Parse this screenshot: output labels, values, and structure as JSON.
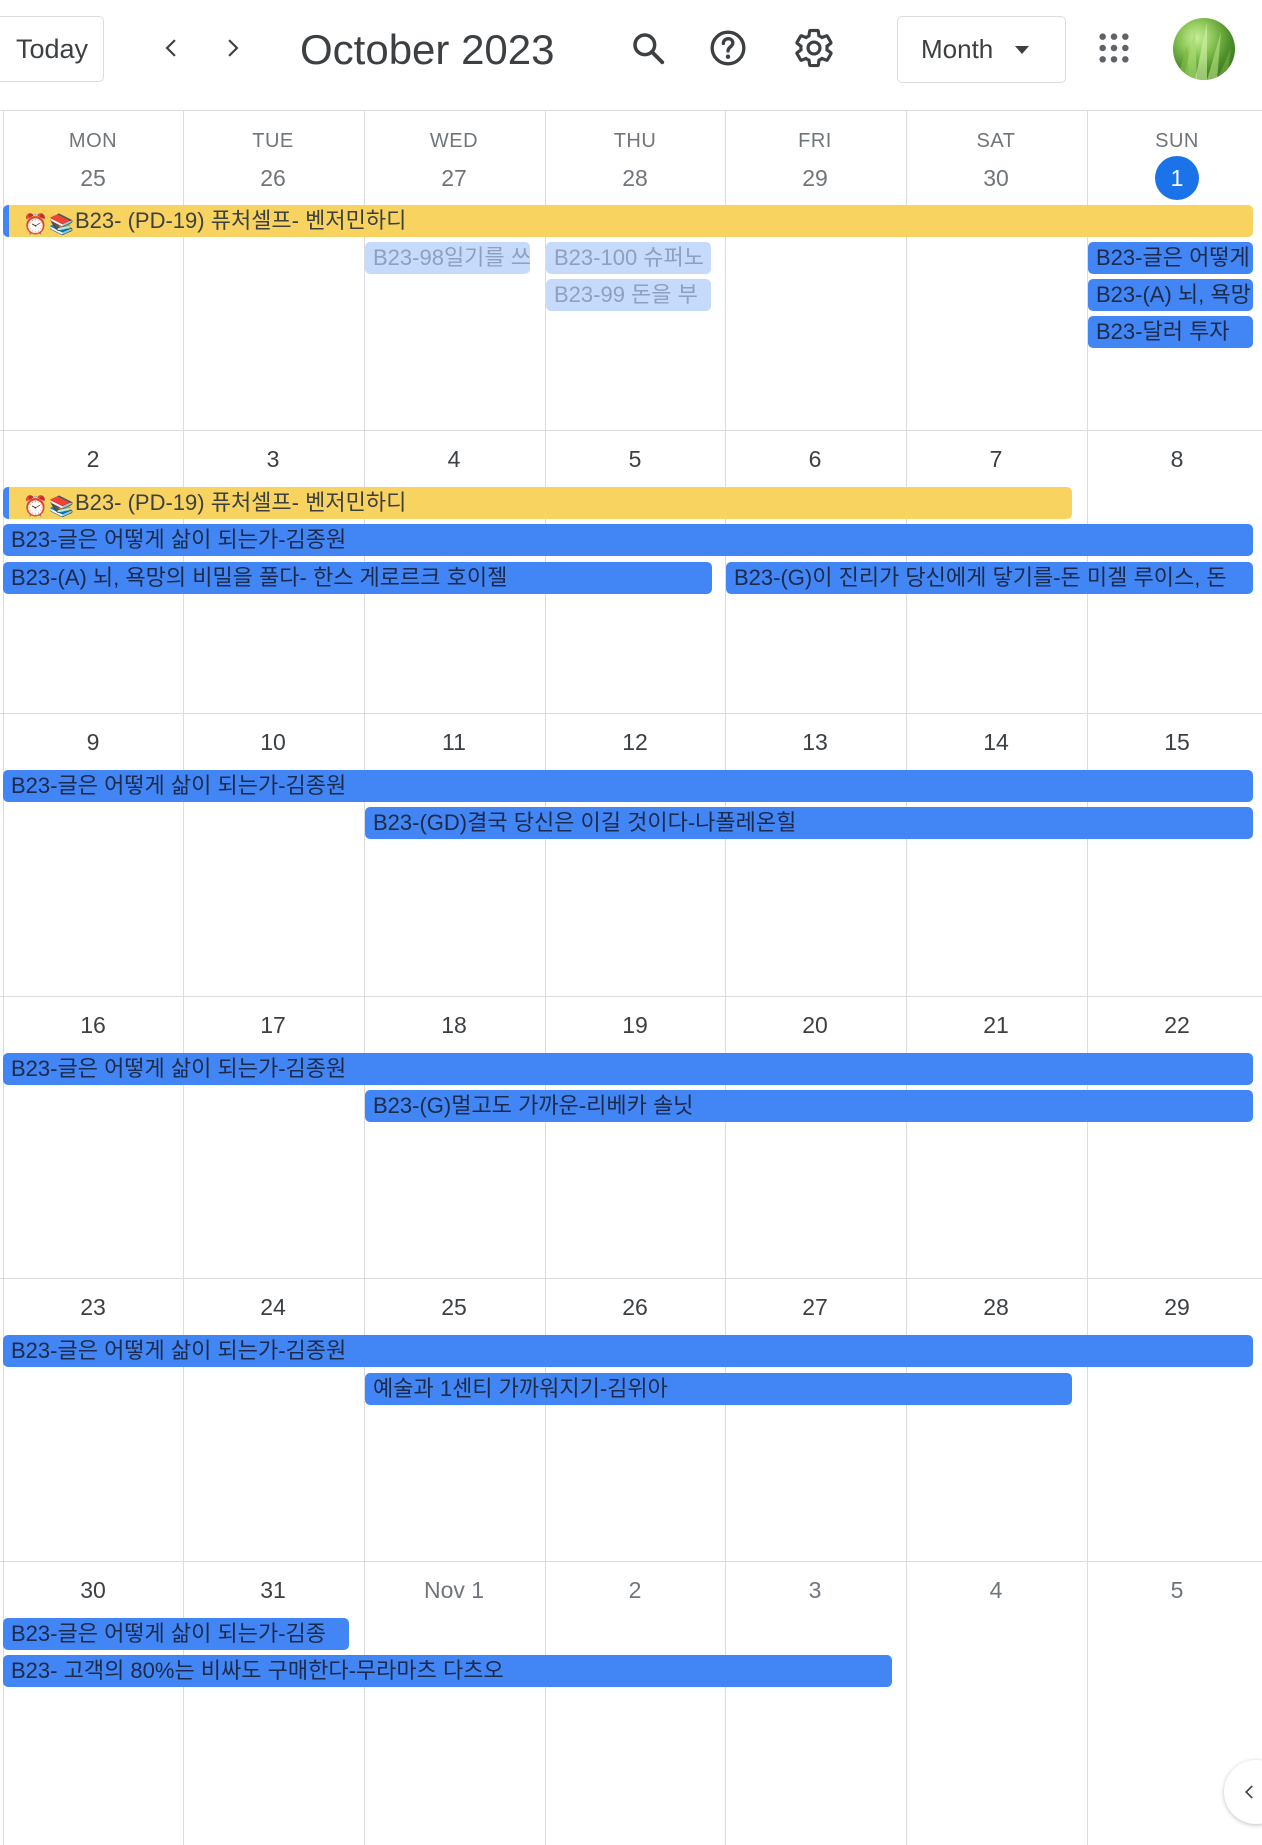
{
  "toolbar": {
    "today_label": "Today",
    "period_title": "October 2023",
    "view_label": "Month",
    "prev_icon": "chevron-left-icon",
    "next_icon": "chevron-right-icon",
    "search_icon": "search-icon",
    "help_icon": "help-icon",
    "settings_icon": "settings-icon",
    "apps_icon": "apps-grid-icon"
  },
  "colors": {
    "accent": "#1a73e8",
    "event_blue": "#4285f4",
    "event_yellow": "#f8d360",
    "event_pale": "#c6dafc",
    "grid_line": "#dadce0"
  },
  "weekdays": [
    "MON",
    "TUE",
    "WED",
    "THU",
    "FRI",
    "SAT",
    "SUN"
  ],
  "weeks": [
    [
      "25",
      "26",
      "27",
      "28",
      "29",
      "30",
      "1"
    ],
    [
      "2",
      "3",
      "4",
      "5",
      "6",
      "7",
      "8"
    ],
    [
      "9",
      "10",
      "11",
      "12",
      "13",
      "14",
      "15"
    ],
    [
      "16",
      "17",
      "18",
      "19",
      "20",
      "21",
      "22"
    ],
    [
      "23",
      "24",
      "25",
      "26",
      "27",
      "28",
      "29"
    ],
    [
      "30",
      "31",
      "Nov 1",
      "2",
      "3",
      "4",
      "5"
    ]
  ],
  "today_date": "1",
  "events": [
    {
      "title": "B23- (PD-19) 퓨처셀프- 벤저민하디",
      "emoji": [
        "⏰",
        "📚"
      ],
      "color": "yellow"
    },
    {
      "title": "B23-98일기를 쓰",
      "color": "pale"
    },
    {
      "title": "B23-100 슈퍼노",
      "color": "pale"
    },
    {
      "title": "B23-99 돈을 부",
      "color": "pale"
    },
    {
      "title": "B23-글은 어떻게",
      "color": "blue"
    },
    {
      "title": "B23-(A) 뇌, 욕망",
      "color": "blue"
    },
    {
      "title": "B23-달러 투자",
      "color": "blue"
    },
    {
      "title": "B23- (PD-19) 퓨처셀프- 벤저민하디",
      "emoji": [
        "⏰",
        "📚"
      ],
      "color": "yellow"
    },
    {
      "title": "B23-글은 어떻게 삶이 되는가-김종원",
      "color": "blue"
    },
    {
      "title": "B23-(A) 뇌, 욕망의 비밀을 풀다- 한스 게로르크 호이젤",
      "color": "blue"
    },
    {
      "title": "B23-(G)이 진리가 당신에게 닿기를-돈 미겔 루이스, 돈",
      "color": "blue"
    },
    {
      "title": "B23-글은 어떻게 삶이 되는가-김종원",
      "color": "blue"
    },
    {
      "title": "B23-(GD)결국 당신은 이길 것이다-나폴레온힐",
      "color": "blue"
    },
    {
      "title": "B23-글은 어떻게 삶이 되는가-김종원",
      "color": "blue"
    },
    {
      "title": "B23-(G)멀고도 가까운-리베카 솔닛",
      "color": "blue"
    },
    {
      "title": "B23-글은 어떻게 삶이 되는가-김종원",
      "color": "blue"
    },
    {
      "title": "예술과 1센티 가까워지기-김위아",
      "color": "blue"
    },
    {
      "title": "B23-글은 어떻게 삶이 되는가-김종",
      "color": "blue"
    },
    {
      "title": "B23- 고객의 80%는 비싸도 구매한다-무라마츠 다츠오",
      "color": "blue"
    }
  ]
}
